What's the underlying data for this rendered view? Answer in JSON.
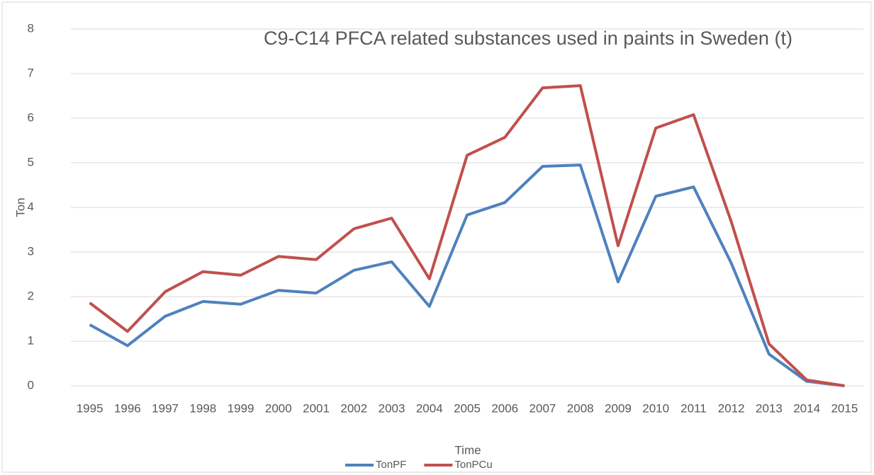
{
  "chart_data": {
    "type": "line",
    "title": "C9-C14 PFCA related substances used in paints in Sweden (t)",
    "x_label": "Time",
    "y_label": "Ton",
    "categories": [
      "1995",
      "1996",
      "1997",
      "1998",
      "1999",
      "2000",
      "2001",
      "2002",
      "2003",
      "2004",
      "2005",
      "2006",
      "2007",
      "2008",
      "2009",
      "2010",
      "2011",
      "2012",
      "2013",
      "2014",
      "2015"
    ],
    "series": [
      {
        "name": "TonPF",
        "color": "#4f81bd",
        "values": [
          1.37,
          0.9,
          1.56,
          1.89,
          1.83,
          2.14,
          2.08,
          2.59,
          2.78,
          1.78,
          3.83,
          4.11,
          4.92,
          4.95,
          2.33,
          4.25,
          4.46,
          2.75,
          0.71,
          0.1,
          0
        ]
      },
      {
        "name": "TonPCu",
        "color": "#c0504d",
        "values": [
          1.86,
          1.22,
          2.11,
          2.56,
          2.48,
          2.9,
          2.83,
          3.52,
          3.76,
          2.4,
          5.17,
          5.57,
          6.68,
          6.73,
          3.14,
          5.78,
          6.08,
          3.68,
          0.94,
          0.13,
          0
        ]
      }
    ],
    "ylim": [
      0,
      8
    ],
    "yticks": [
      0,
      1,
      2,
      3,
      4,
      5,
      6,
      7,
      8
    ],
    "grid": true,
    "legend": "bottom"
  }
}
